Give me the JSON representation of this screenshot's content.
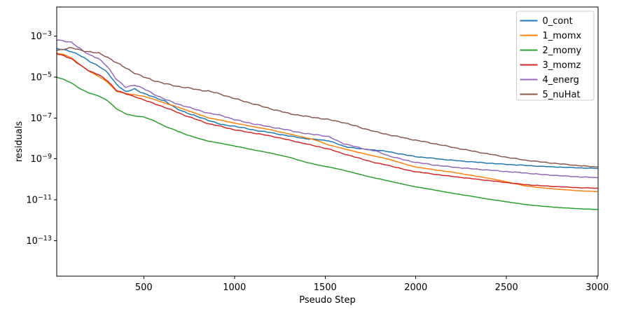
{
  "chart_data": {
    "type": "line",
    "title": "",
    "xlabel": "Pseudo Step",
    "ylabel": "residuals",
    "x_axis": {
      "ticks": [
        500,
        1000,
        1500,
        2000,
        2500,
        3000
      ],
      "range": [
        20,
        3005
      ],
      "scale": "linear"
    },
    "y_axis": {
      "tick_exponents": [
        -3,
        -5,
        -7,
        -9,
        -11,
        -13
      ],
      "range_log10": [
        -14.74,
        -1.57
      ],
      "scale": "log"
    },
    "grid": false,
    "legend": {
      "position": "upper right"
    },
    "x": [
      20,
      60,
      100,
      150,
      200,
      250,
      300,
      350,
      400,
      450,
      500,
      560,
      620,
      680,
      730,
      800,
      860,
      930,
      1000,
      1100,
      1200,
      1300,
      1400,
      1460,
      1520,
      1600,
      1700,
      1780,
      1850,
      1950,
      2000,
      2100,
      2200,
      2300,
      2400,
      2500,
      2600,
      2700,
      2800,
      2900,
      3000
    ],
    "series": [
      {
        "name": "0_cont",
        "color": "#1f77b4",
        "noise": 0.03,
        "log10_residual": [
          -3.62,
          -3.66,
          -3.74,
          -3.95,
          -4.22,
          -4.45,
          -4.78,
          -5.35,
          -5.72,
          -5.58,
          -5.8,
          -6.0,
          -6.18,
          -6.55,
          -6.72,
          -6.95,
          -7.12,
          -7.33,
          -7.4,
          -7.58,
          -7.72,
          -7.88,
          -8.02,
          -8.06,
          -8.11,
          -8.38,
          -8.52,
          -8.57,
          -8.65,
          -8.82,
          -8.89,
          -8.98,
          -9.07,
          -9.14,
          -9.21,
          -9.27,
          -9.32,
          -9.37,
          -9.41,
          -9.44,
          -9.47
        ]
      },
      {
        "name": "1_momx",
        "color": "#ff7f0e",
        "noise": 0.01,
        "log10_residual": [
          -3.83,
          -3.9,
          -4.05,
          -4.4,
          -4.72,
          -4.96,
          -5.25,
          -5.7,
          -5.8,
          -5.87,
          -5.94,
          -6.1,
          -6.28,
          -6.45,
          -6.6,
          -6.82,
          -7.0,
          -7.12,
          -7.25,
          -7.42,
          -7.58,
          -7.78,
          -7.98,
          -8.12,
          -8.32,
          -8.5,
          -8.72,
          -8.88,
          -9.02,
          -9.28,
          -9.4,
          -9.53,
          -9.65,
          -9.8,
          -9.95,
          -10.12,
          -10.32,
          -10.42,
          -10.5,
          -10.56,
          -10.6
        ]
      },
      {
        "name": "2_momy",
        "color": "#2ca02c",
        "noise": 0.01,
        "log10_residual": [
          -5.0,
          -5.12,
          -5.28,
          -5.58,
          -5.78,
          -5.92,
          -6.15,
          -6.55,
          -6.8,
          -6.9,
          -6.95,
          -7.15,
          -7.42,
          -7.62,
          -7.8,
          -8.0,
          -8.14,
          -8.25,
          -8.37,
          -8.55,
          -8.72,
          -8.92,
          -9.18,
          -9.3,
          -9.4,
          -9.55,
          -9.78,
          -9.95,
          -10.08,
          -10.28,
          -10.37,
          -10.52,
          -10.68,
          -10.82,
          -10.97,
          -11.1,
          -11.23,
          -11.32,
          -11.39,
          -11.44,
          -11.48
        ]
      },
      {
        "name": "3_momz",
        "color": "#d62728",
        "noise": 0.025,
        "log10_residual": [
          -3.86,
          -3.95,
          -4.1,
          -4.42,
          -4.7,
          -4.88,
          -5.18,
          -5.65,
          -5.82,
          -5.95,
          -6.12,
          -6.3,
          -6.5,
          -6.7,
          -6.89,
          -7.1,
          -7.29,
          -7.42,
          -7.58,
          -7.73,
          -7.88,
          -8.08,
          -8.28,
          -8.4,
          -8.52,
          -8.75,
          -9.0,
          -9.2,
          -9.32,
          -9.55,
          -9.63,
          -9.75,
          -9.86,
          -9.96,
          -10.06,
          -10.16,
          -10.26,
          -10.32,
          -10.37,
          -10.41,
          -10.44
        ]
      },
      {
        "name": "4_energ",
        "color": "#9467bd",
        "noise": 0.035,
        "log10_residual": [
          -3.18,
          -3.22,
          -3.3,
          -3.62,
          -3.9,
          -4.1,
          -4.48,
          -5.12,
          -5.5,
          -5.38,
          -5.57,
          -5.85,
          -6.1,
          -6.3,
          -6.43,
          -6.62,
          -6.77,
          -6.88,
          -7.08,
          -7.28,
          -7.44,
          -7.6,
          -7.78,
          -7.82,
          -7.92,
          -8.25,
          -8.48,
          -8.62,
          -8.85,
          -9.08,
          -9.17,
          -9.3,
          -9.4,
          -9.48,
          -9.55,
          -9.62,
          -9.69,
          -9.77,
          -9.83,
          -9.88,
          -9.92
        ]
      },
      {
        "name": "5_nuHat",
        "color": "#8c564b",
        "noise": 0.04,
        "log10_residual": [
          -3.7,
          -3.62,
          -3.57,
          -3.68,
          -3.76,
          -3.83,
          -4.02,
          -4.3,
          -4.55,
          -4.8,
          -5.0,
          -5.18,
          -5.33,
          -5.44,
          -5.51,
          -5.62,
          -5.69,
          -5.85,
          -6.05,
          -6.3,
          -6.55,
          -6.78,
          -6.93,
          -7.0,
          -7.08,
          -7.22,
          -7.48,
          -7.68,
          -7.82,
          -8.0,
          -8.09,
          -8.25,
          -8.43,
          -8.6,
          -8.76,
          -8.92,
          -9.06,
          -9.16,
          -9.25,
          -9.33,
          -9.4
        ]
      }
    ]
  }
}
